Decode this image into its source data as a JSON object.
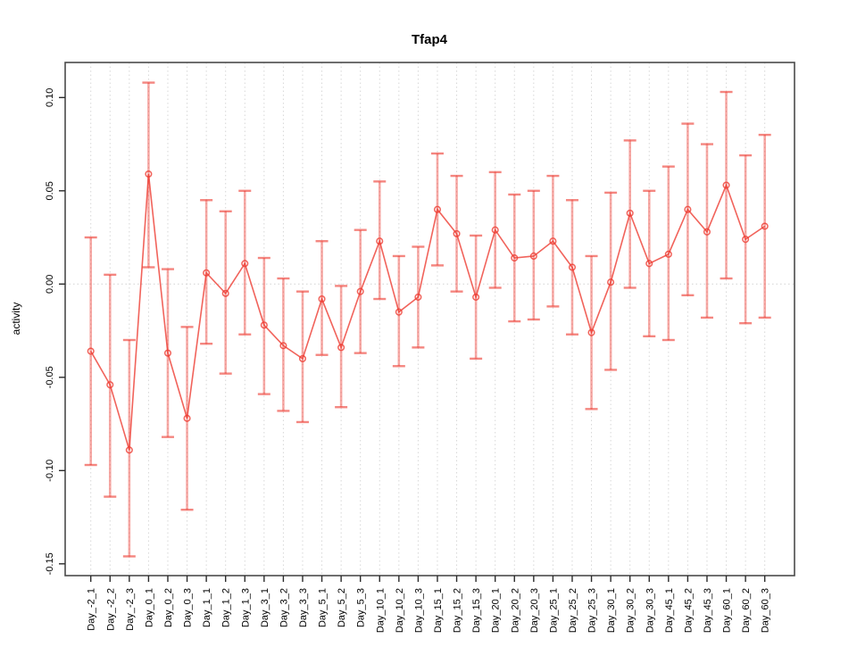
{
  "title": "Tfap4",
  "ylabel": "activity",
  "chart_data": {
    "type": "line",
    "title": "Tfap4",
    "xlabel": "",
    "ylabel": "activity",
    "legend": "none",
    "grid": "vertical dotted gridlines at every category; dotted horizontal line at y=0",
    "point_style": "open circles connected by line, vertical error bars with caps",
    "ylim": [
      -0.156,
      0.119
    ],
    "yticks": [
      0.1,
      0.05,
      0.0,
      -0.05,
      -0.1,
      -0.15
    ],
    "ytick_labels": [
      "0.10",
      "0.05",
      "0.00",
      "-0.05",
      "-0.10",
      "-0.15"
    ],
    "categories": [
      "Day_-2_1",
      "Day_-2_2",
      "Day_-2_3",
      "Day_0_1",
      "Day_0_2",
      "Day_0_3",
      "Day_1_1",
      "Day_1_2",
      "Day_1_3",
      "Day_3_1",
      "Day_3_2",
      "Day_3_3",
      "Day_5_1",
      "Day_5_2",
      "Day_5_3",
      "Day_10_1",
      "Day_10_2",
      "Day_10_3",
      "Day_15_1",
      "Day_15_2",
      "Day_15_3",
      "Day_20_1",
      "Day_20_2",
      "Day_20_3",
      "Day_25_1",
      "Day_25_2",
      "Day_25_3",
      "Day_30_1",
      "Day_30_2",
      "Day_30_3",
      "Day_45_1",
      "Day_45_2",
      "Day_45_3",
      "Day_60_1",
      "Day_60_2",
      "Day_60_3"
    ],
    "series": [
      {
        "name": "activity",
        "values": [
          -0.036,
          -0.054,
          -0.089,
          0.059,
          -0.037,
          -0.072,
          0.006,
          -0.005,
          0.011,
          -0.022,
          -0.033,
          -0.04,
          -0.008,
          -0.034,
          -0.004,
          0.023,
          -0.015,
          -0.007,
          0.04,
          0.027,
          -0.007,
          0.029,
          0.014,
          0.015,
          0.023,
          0.009,
          -0.026,
          0.001,
          0.038,
          0.011,
          0.016,
          0.04,
          0.028,
          0.053,
          0.024,
          0.031
        ],
        "error_upper": [
          0.025,
          0.005,
          -0.03,
          0.108,
          0.008,
          -0.023,
          0.045,
          0.039,
          0.05,
          0.014,
          0.003,
          -0.004,
          0.023,
          -0.001,
          0.029,
          0.055,
          0.015,
          0.02,
          0.07,
          0.058,
          0.026,
          0.06,
          0.048,
          0.05,
          0.058,
          0.045,
          0.015,
          0.049,
          0.077,
          0.05,
          0.063,
          0.086,
          0.075,
          0.103,
          0.069,
          0.08
        ],
        "error_lower": [
          -0.097,
          -0.114,
          -0.146,
          0.009,
          -0.082,
          -0.121,
          -0.032,
          -0.048,
          -0.027,
          -0.059,
          -0.068,
          -0.074,
          -0.038,
          -0.066,
          -0.037,
          -0.008,
          -0.044,
          -0.034,
          0.01,
          -0.004,
          -0.04,
          -0.002,
          -0.02,
          -0.019,
          -0.012,
          -0.027,
          -0.067,
          -0.046,
          -0.002,
          -0.028,
          -0.03,
          -0.006,
          -0.018,
          0.003,
          -0.021,
          -0.018
        ]
      }
    ],
    "colors": {
      "series_line": "rgba(238,60,50,0.80)",
      "point_outline": "rgba(238,60,50,0.80)",
      "error_bar_stem": "rgba(238,60,50,0.44)",
      "error_bar_cap": "rgba(238,60,50,0.62)",
      "gridline": "#d7d7d7",
      "zero_line": "#d2d2d2",
      "frame": "#4a4a4a",
      "tick_mark": "#2b2b2b",
      "text": "#000000"
    }
  }
}
